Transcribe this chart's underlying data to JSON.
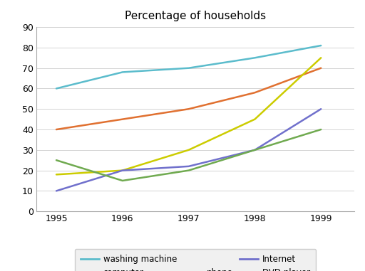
{
  "title": "Percentage of households",
  "years": [
    1995,
    1996,
    1997,
    1998,
    1999
  ],
  "series": {
    "washing machine": {
      "values": [
        60,
        68,
        70,
        75,
        81
      ],
      "color": "#5bbccc"
    },
    "computer": {
      "values": [
        40,
        45,
        50,
        58,
        70
      ],
      "color": "#e07030"
    },
    "phone": {
      "values": [
        18,
        20,
        30,
        45,
        75
      ],
      "color": "#cccc00"
    },
    "Internet": {
      "values": [
        10,
        20,
        22,
        30,
        50
      ],
      "color": "#7070cc"
    },
    "DVD player": {
      "values": [
        25,
        15,
        20,
        30,
        40
      ],
      "color": "#70aa50"
    }
  },
  "ylim": [
    0,
    90
  ],
  "yticks": [
    0,
    10,
    20,
    30,
    40,
    50,
    60,
    70,
    80,
    90
  ],
  "xticks": [
    1995,
    1996,
    1997,
    1998,
    1999
  ],
  "legend_row1": [
    "washing machine",
    "computer"
  ],
  "legend_row2": [
    "phone",
    "Internet",
    "DVD player"
  ],
  "background_color": "#ffffff",
  "grid_color": "#cccccc",
  "title_fontsize": 11,
  "axis_fontsize": 9,
  "legend_fontsize": 8.5
}
